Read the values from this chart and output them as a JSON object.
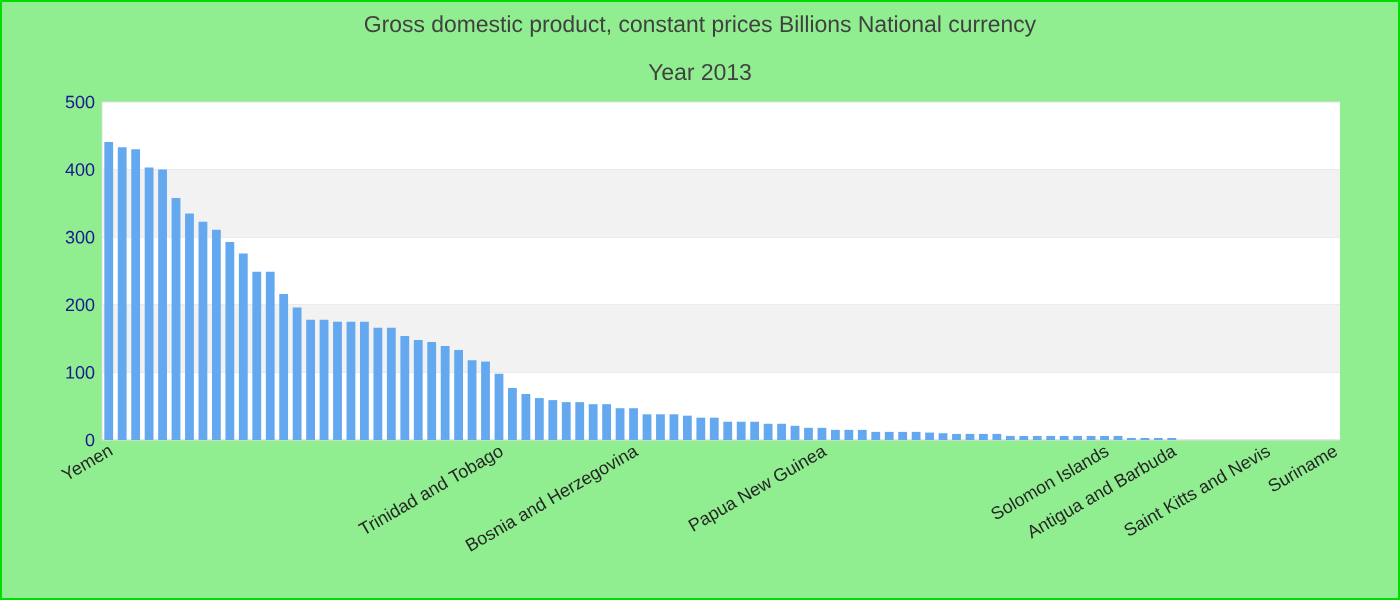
{
  "chart_data": {
    "type": "bar",
    "title": "Gross domestic product, constant prices Billions National currency",
    "subtitle": "Year 2013",
    "categories": [
      "Yemen",
      null,
      null,
      null,
      null,
      null,
      null,
      null,
      null,
      null,
      null,
      null,
      null,
      null,
      null,
      null,
      null,
      null,
      null,
      null,
      null,
      null,
      null,
      null,
      null,
      null,
      null,
      null,
      null,
      "Trinidad and Tobago",
      null,
      null,
      null,
      null,
      null,
      null,
      null,
      null,
      null,
      "Bosnia and Herzegovina",
      null,
      null,
      null,
      null,
      null,
      null,
      null,
      null,
      null,
      null,
      null,
      null,
      null,
      "Papua New Guinea",
      null,
      null,
      null,
      null,
      null,
      null,
      null,
      null,
      null,
      null,
      null,
      null,
      null,
      null,
      null,
      null,
      null,
      null,
      null,
      null,
      "Solomon Islands",
      null,
      null,
      null,
      null,
      "Antigua and Barbuda",
      null,
      null,
      null,
      null,
      null,
      null,
      "Saint Kitts and Nevis",
      null,
      null,
      null,
      null,
      "Suriname"
    ],
    "values": [
      441,
      433,
      430,
      403,
      400,
      358,
      335,
      323,
      311,
      293,
      276,
      249,
      249,
      216,
      196,
      178,
      178,
      175,
      175,
      175,
      166,
      166,
      154,
      148,
      145,
      139,
      133,
      118,
      116,
      98,
      77,
      68,
      62,
      59,
      56,
      56,
      53,
      53,
      47,
      47,
      38,
      38,
      38,
      36,
      33,
      33,
      27,
      27,
      27,
      24,
      24,
      21,
      18,
      18,
      15,
      15,
      15,
      12,
      12,
      12,
      12,
      11,
      10,
      9,
      9,
      9,
      9,
      6,
      6,
      6,
      6,
      6,
      6,
      6,
      6,
      6,
      3,
      3,
      3,
      3,
      0,
      0,
      0,
      0,
      0,
      0,
      0,
      0,
      0,
      0,
      0,
      0
    ],
    "color": "#64a8f0",
    "ylim": [
      0,
      500
    ],
    "yticks": [
      0,
      100,
      200,
      300,
      400,
      500
    ],
    "grid": "y"
  }
}
